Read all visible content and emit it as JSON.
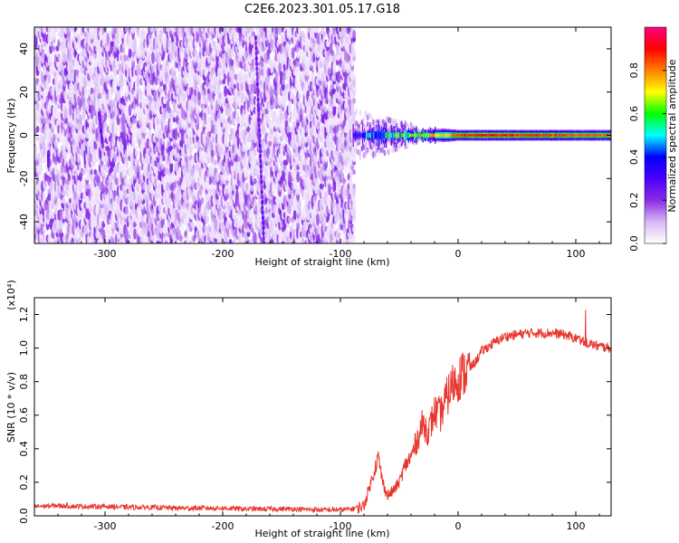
{
  "title": "C2E6.2023.301.05.17.G18",
  "chart_data": [
    {
      "type": "heatmap",
      "xlabel": "Height of straight line (km)",
      "ylabel": "Frequency (Hz)",
      "xlim": [
        -360,
        130
      ],
      "ylim": [
        -50,
        50
      ],
      "xticks": [
        -300,
        -200,
        -100,
        0,
        100
      ],
      "xtick_labels": [
        "-300",
        "-200",
        "-100",
        "0",
        "100"
      ],
      "yticks": [
        -40,
        -20,
        0,
        20,
        40
      ],
      "ytick_labels": [
        "-40",
        "-20",
        "0",
        "20",
        "40"
      ],
      "colorbar": {
        "label": "Normalized spectral amplitude",
        "range": [
          0,
          1
        ],
        "ticks": [
          0.0,
          0.2,
          0.4,
          0.6,
          0.8
        ],
        "tick_labels": [
          "0.0",
          "0.2",
          "0.4",
          "0.6",
          "0.8"
        ],
        "colors": [
          "#ffffff",
          "#d7b8f5",
          "#8a2be2",
          "#4b00ff",
          "#0000ff",
          "#00ffff",
          "#00ff00",
          "#ffff00",
          "#ff8000",
          "#ff0000",
          "#ff0080"
        ]
      },
      "noise_region_x": [
        -360,
        -88
      ],
      "streaks": [
        {
          "x_top": -172,
          "x_bottom": -165,
          "y_top": 45,
          "y_bottom": -50
        },
        {
          "x_top": -305,
          "x_bottom": -302,
          "y_top": 10,
          "y_bottom": -5
        },
        {
          "x_top": -348,
          "x_bottom": -348,
          "y_top": -8,
          "y_bottom": -14
        }
      ],
      "signal_band": [
        {
          "x": -90,
          "halfwidth": 4,
          "amplitude": 0.3
        },
        {
          "x": -70,
          "halfwidth": 5,
          "amplitude": 0.45
        },
        {
          "x": -50,
          "halfwidth": 4,
          "amplitude": 0.55
        },
        {
          "x": -30,
          "halfwidth": 3,
          "amplitude": 0.7
        },
        {
          "x": -10,
          "halfwidth": 3,
          "amplitude": 0.75
        },
        {
          "x": 0,
          "halfwidth": 2.5,
          "amplitude": 0.85
        },
        {
          "x": 20,
          "halfwidth": 2.5,
          "amplitude": 0.9
        },
        {
          "x": 40,
          "halfwidth": 2.5,
          "amplitude": 0.88
        },
        {
          "x": 60,
          "halfwidth": 2.5,
          "amplitude": 0.86
        },
        {
          "x": 80,
          "halfwidth": 2.5,
          "amplitude": 0.85
        },
        {
          "x": 100,
          "halfwidth": 2.5,
          "amplitude": 0.84
        },
        {
          "x": 130,
          "halfwidth": 2.5,
          "amplitude": 0.82
        }
      ]
    },
    {
      "type": "line",
      "xlabel": "Height of straight line (km)",
      "ylabel": "SNR (10 * v/v)",
      "multiplier": "(x10⁴)",
      "xlim": [
        -360,
        130
      ],
      "ylim": [
        0,
        1.3
      ],
      "xticks": [
        -300,
        -200,
        -100,
        0,
        100
      ],
      "xtick_labels": [
        "-300",
        "-200",
        "-100",
        "0",
        "100"
      ],
      "yticks": [
        0.0,
        0.2,
        0.4,
        0.6,
        0.8,
        1.0,
        1.2
      ],
      "ytick_labels": [
        "0.0",
        "0.2",
        "0.4",
        "0.6",
        "0.8",
        "1.0",
        "1.2"
      ],
      "line_color": "#e8372e",
      "series": [
        {
          "x": [
            -360,
            -340,
            -320,
            -300,
            -280,
            -260,
            -240,
            -220,
            -200,
            -180,
            -160,
            -140,
            -120,
            -110,
            -100,
            -90,
            -80,
            -72,
            -68,
            -64,
            -60,
            -55,
            -50,
            -45,
            -40,
            -35,
            -30,
            -25,
            -20,
            -15,
            -10,
            -5,
            0,
            5,
            10,
            15,
            20,
            30,
            40,
            50,
            60,
            70,
            80,
            90,
            100,
            110,
            120,
            130
          ],
          "values": [
            0.05,
            0.055,
            0.05,
            0.05,
            0.045,
            0.045,
            0.04,
            0.04,
            0.04,
            0.035,
            0.035,
            0.035,
            0.03,
            0.03,
            0.03,
            0.035,
            0.06,
            0.25,
            0.35,
            0.2,
            0.12,
            0.15,
            0.2,
            0.3,
            0.35,
            0.45,
            0.55,
            0.5,
            0.62,
            0.6,
            0.7,
            0.78,
            0.82,
            0.85,
            0.88,
            0.92,
            0.98,
            1.03,
            1.07,
            1.08,
            1.09,
            1.09,
            1.09,
            1.08,
            1.06,
            1.03,
            1.01,
            1.0
          ]
        }
      ]
    }
  ]
}
